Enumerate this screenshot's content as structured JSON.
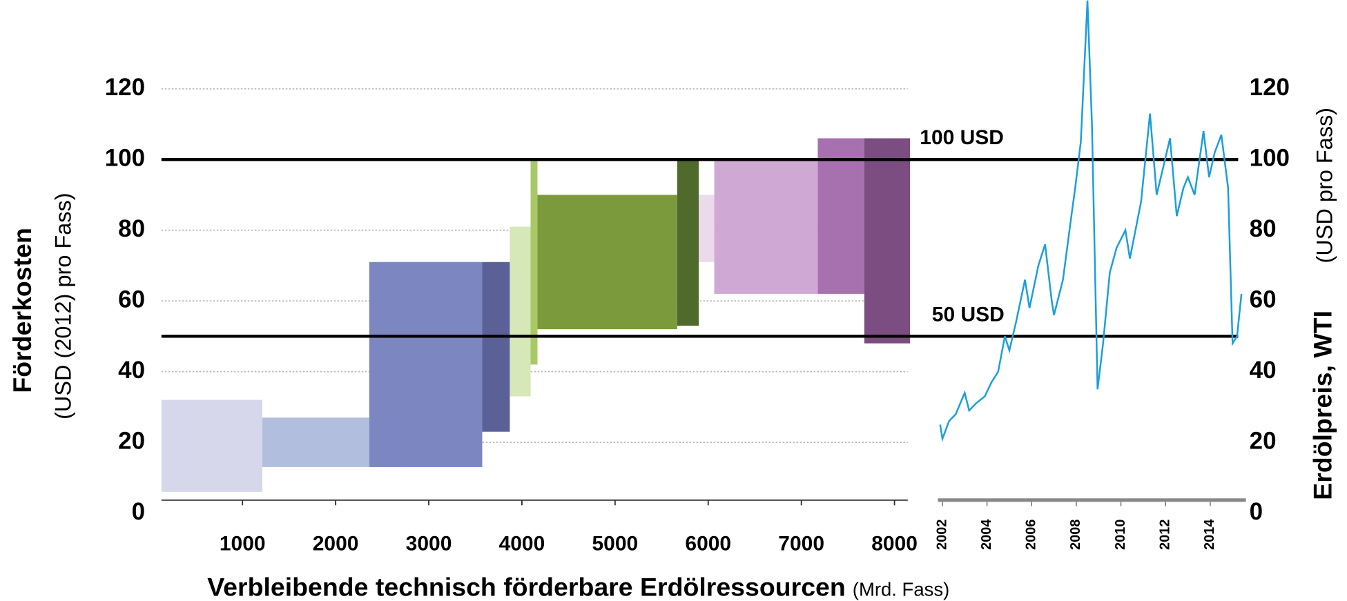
{
  "chart_data": [
    {
      "type": "floating_bar",
      "xlabel": "Verbleibende technisch förderbare Erdölressourcen",
      "xlabel_unit": "(Mrd. Fass)",
      "ylabel": "Förderkosten",
      "ylabel_unit": "(USD (2012) pro Fass)",
      "xlim": [
        130,
        8170
      ],
      "xticks": [
        1000,
        2000,
        3000,
        4000,
        5000,
        6000,
        7000,
        8000
      ],
      "ylim": [
        0,
        120
      ],
      "yticks": [
        0,
        20,
        40,
        60,
        80,
        100,
        120
      ],
      "grid": true,
      "bars": [
        {
          "x0": 130,
          "x1": 1213,
          "low": 6,
          "high": 32,
          "color": "#d6d7ea"
        },
        {
          "x0": 1213,
          "x1": 2361,
          "low": 13,
          "high": 27,
          "color": "#b2bedd"
        },
        {
          "x0": 2361,
          "x1": 3574,
          "low": 13,
          "high": 71,
          "color": "#7c87c1"
        },
        {
          "x0": 3574,
          "x1": 3870,
          "low": 23,
          "high": 71,
          "color": "#5b6097"
        },
        {
          "x0": 3870,
          "x1": 4093,
          "low": 33,
          "high": 81,
          "color": "#d6e7b8"
        },
        {
          "x0": 4093,
          "x1": 4167,
          "low": 42,
          "high": 100,
          "color": "#a9c968"
        },
        {
          "x0": 4167,
          "x1": 5667,
          "low": 52,
          "high": 90,
          "color": "#7b9a3b"
        },
        {
          "x0": 5667,
          "x1": 5898,
          "low": 53,
          "high": 100,
          "color": "#4f6a2b"
        },
        {
          "x0": 5898,
          "x1": 6065,
          "low": 71,
          "high": 90,
          "color": "#eadaeb"
        },
        {
          "x0": 6065,
          "x1": 7176,
          "low": 62,
          "high": 100,
          "color": "#d0a8d4"
        },
        {
          "x0": 7176,
          "x1": 7676,
          "low": 62,
          "high": 106,
          "color": "#a770ae"
        },
        {
          "x0": 7676,
          "x1": 8167,
          "low": 48,
          "high": 106,
          "color": "#7b4d81"
        }
      ],
      "reference_lines": [
        {
          "value": 100,
          "label": "100 USD"
        },
        {
          "value": 50,
          "label": "50 USD"
        }
      ]
    },
    {
      "type": "line",
      "ylabel": "Erdölpreis, WTI",
      "ylabel_unit": "(USD pro Fass)",
      "xlim": [
        2001.8,
        2015.6
      ],
      "xticks": [
        2002,
        2004,
        2006,
        2008,
        2010,
        2012,
        2014
      ],
      "ylim": [
        0,
        120
      ],
      "yticks": [
        0,
        20,
        40,
        60,
        80,
        100,
        120
      ],
      "series": [
        {
          "name": "WTI",
          "color": "#1a9fdb",
          "x": [
            2001.9,
            2002.0,
            2002.3,
            2002.6,
            2003.0,
            2003.2,
            2003.5,
            2003.9,
            2004.2,
            2004.5,
            2004.8,
            2005.0,
            2005.3,
            2005.7,
            2005.9,
            2006.3,
            2006.6,
            2006.9,
            2007.0,
            2007.4,
            2007.8,
            2007.95,
            2008.2,
            2008.5,
            2008.7,
            2008.95,
            2009.2,
            2009.5,
            2009.8,
            2010.2,
            2010.4,
            2010.9,
            2011.3,
            2011.6,
            2011.9,
            2012.2,
            2012.5,
            2012.8,
            2013.0,
            2013.3,
            2013.7,
            2013.95,
            2014.2,
            2014.5,
            2014.8,
            2015.0,
            2015.2,
            2015.4
          ],
          "values": [
            25,
            21,
            26,
            28,
            34,
            29,
            31,
            33,
            37,
            40,
            50,
            46,
            54,
            66,
            58,
            70,
            76,
            60,
            56,
            66,
            85,
            92,
            105,
            145,
            110,
            35,
            48,
            68,
            75,
            80,
            72,
            88,
            113,
            90,
            98,
            106,
            84,
            92,
            95,
            90,
            108,
            95,
            102,
            107,
            92,
            48,
            50,
            62
          ]
        }
      ]
    }
  ]
}
